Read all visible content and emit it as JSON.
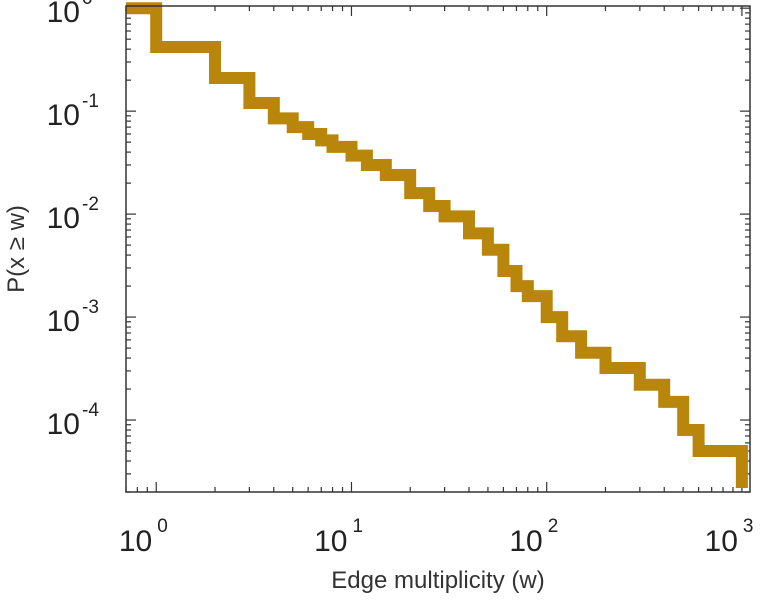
{
  "chart_data": {
    "type": "line",
    "step": true,
    "xlabel": "Edge multiplicity (w)",
    "ylabel": "P(x ≥ w)",
    "x_scale": "log",
    "y_scale": "log",
    "xlim": [
      0.7,
      1100
    ],
    "ylim": [
      2e-05,
      1.05
    ],
    "x_ticks": [
      {
        "value": 1,
        "base": "10",
        "exp": "0"
      },
      {
        "value": 10,
        "base": "10",
        "exp": "1"
      },
      {
        "value": 100,
        "base": "10",
        "exp": "2"
      },
      {
        "value": 1000,
        "base": "10",
        "exp": "3"
      }
    ],
    "y_ticks": [
      {
        "value": 1,
        "base": "10",
        "exp": "0"
      },
      {
        "value": 0.1,
        "base": "10",
        "exp": "-1"
      },
      {
        "value": 0.01,
        "base": "10",
        "exp": "-2"
      },
      {
        "value": 0.001,
        "base": "10",
        "exp": "-3"
      },
      {
        "value": 0.0001,
        "base": "10",
        "exp": "-4"
      }
    ],
    "grid": false,
    "legend": "none",
    "series": [
      {
        "color": "#b8860b",
        "x": [
          0.7,
          1,
          2,
          3,
          4,
          5,
          6,
          7,
          8,
          10,
          12,
          15,
          20,
          25,
          30,
          40,
          50,
          60,
          70,
          80,
          100,
          120,
          150,
          200,
          300,
          350,
          400,
          500,
          600,
          800,
          1000
        ],
        "y": [
          1,
          0.42,
          0.21,
          0.12,
          0.085,
          0.07,
          0.06,
          0.052,
          0.045,
          0.037,
          0.03,
          0.024,
          0.016,
          0.012,
          0.0095,
          0.0065,
          0.0045,
          0.0028,
          0.002,
          0.0016,
          0.001,
          0.00065,
          0.00045,
          0.00032,
          0.00022,
          0.00022,
          0.00015,
          8e-05,
          5e-05,
          5e-05,
          2.5e-05
        ]
      }
    ]
  }
}
